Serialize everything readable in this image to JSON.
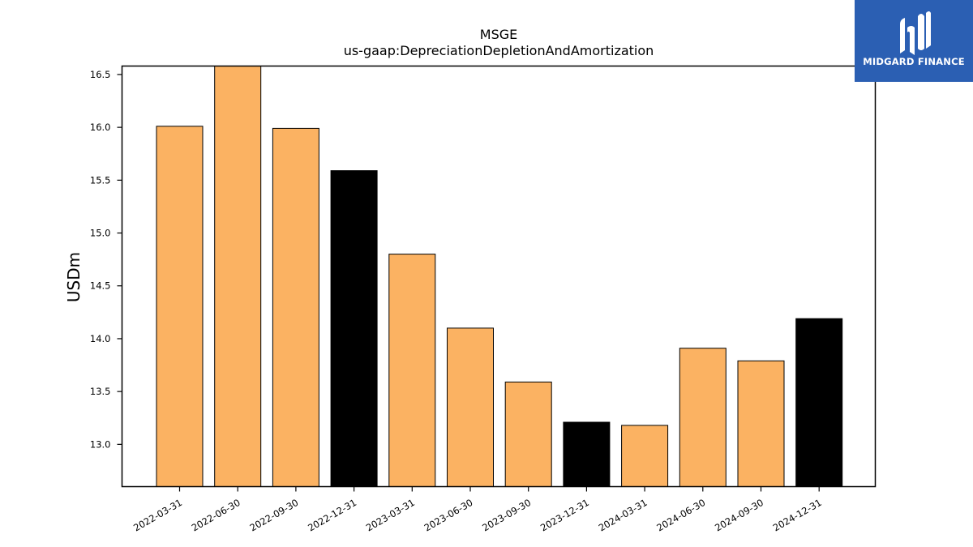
{
  "chart_data": {
    "type": "bar",
    "title": "MSGE",
    "subtitle": "us-gaap:DepreciationDepletionAndAmortization",
    "ylabel": "USDm",
    "xlabel": "",
    "categories": [
      "2022-03-31",
      "2022-06-30",
      "2022-09-30",
      "2022-12-31",
      "2023-03-31",
      "2023-06-30",
      "2023-09-30",
      "2023-12-31",
      "2024-03-31",
      "2024-06-30",
      "2024-09-30",
      "2024-12-31"
    ],
    "values": [
      16.01,
      16.58,
      15.99,
      15.59,
      14.8,
      14.1,
      13.59,
      13.21,
      13.18,
      13.91,
      13.79,
      14.19
    ],
    "bar_colors": [
      "#fbb262",
      "#fbb262",
      "#fbb262",
      "#000000",
      "#fbb262",
      "#fbb262",
      "#fbb262",
      "#000000",
      "#fbb262",
      "#fbb262",
      "#fbb262",
      "#000000"
    ],
    "ylim": [
      12.6,
      16.58
    ],
    "yticks": [
      13.0,
      13.5,
      14.0,
      14.5,
      15.0,
      15.5,
      16.0,
      16.5
    ],
    "ytick_labels": [
      "13.0",
      "13.5",
      "14.0",
      "14.5",
      "15.0",
      "15.5",
      "16.0",
      "16.5"
    ],
    "grid": false,
    "legend": "none"
  },
  "logo": {
    "text": "MIDGARD FINANCE",
    "icon": "midgard-logo-icon"
  }
}
